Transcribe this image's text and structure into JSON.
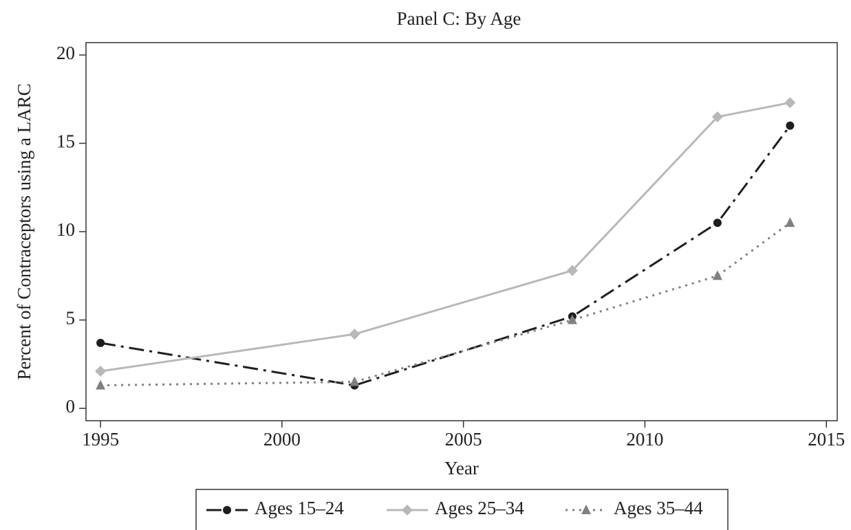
{
  "chart_data": {
    "type": "line",
    "title": "Panel C: By Age",
    "x_label": "Year",
    "y_label": "Percent of Contraceptors using a LARC",
    "x": [
      1995,
      2002,
      2008,
      2012,
      2014
    ],
    "series": [
      {
        "name": "Ages 15–24",
        "color": "#1e1e1e",
        "linestyle": "dashdot",
        "marker": "circle",
        "values": [
          3.7,
          1.3,
          5.2,
          10.5,
          16.0
        ]
      },
      {
        "name": "Ages 25–34",
        "color": "#b8b8b8",
        "linestyle": "solid",
        "marker": "diamond",
        "values": [
          2.1,
          4.2,
          7.8,
          16.5,
          17.3
        ]
      },
      {
        "name": "Ages 35–44",
        "color": "#808080",
        "linestyle": "dotted",
        "marker": "triangle",
        "values": [
          1.3,
          1.5,
          5.0,
          7.5,
          10.5
        ]
      }
    ],
    "xlim": [
      1994.6,
      2015.3
    ],
    "xticks": [
      1995,
      2000,
      2005,
      2010,
      2015
    ],
    "ylim": [
      -0.7,
      20.7
    ],
    "yticks": [
      0,
      5,
      10,
      15,
      20
    ],
    "legend": "bottom"
  }
}
